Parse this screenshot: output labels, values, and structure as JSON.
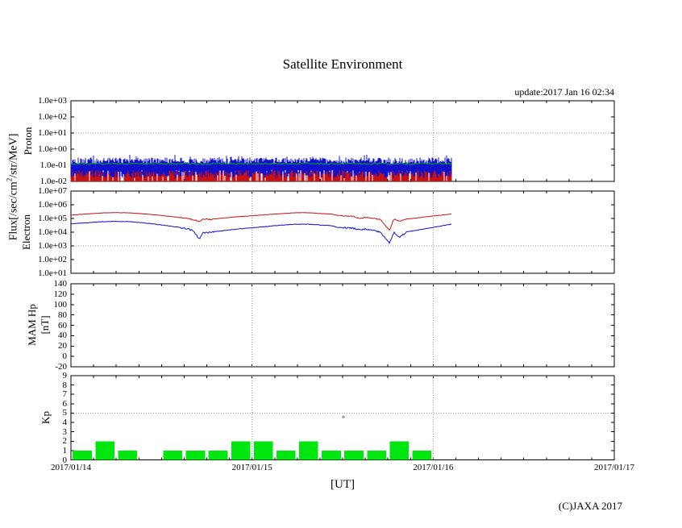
{
  "page": {
    "title": "Satellite Environment",
    "update_text": "update:2017 Jan 16 02:34",
    "xlabel": "[UT]",
    "copyright": "(C)JAXA 2017",
    "flux_label_pre": "Flux[/sec/cm",
    "flux_label_sup": "2",
    "flux_label_post": "/str/MeV]"
  },
  "axes": {
    "x": {
      "tick_labels": [
        "2017/01/14",
        "2017/01/15",
        "2017/01/16",
        "2017/01/17"
      ],
      "total_hours": 72,
      "minor_tick_hours": 3,
      "grid_hours": [
        24,
        48
      ]
    }
  },
  "chart_data": [
    {
      "type": "line",
      "panel": "proton",
      "ylabel": "Proton",
      "yscale": "log",
      "ytick_labels": [
        "1.0e+03",
        "1.0e+02",
        "1.0e+01",
        "1.0e+00",
        "1.0e-01",
        "1.0e-02"
      ],
      "ytick_logs": [
        3,
        2,
        1,
        0,
        -1,
        -2
      ],
      "grid_log": 1,
      "data_end_hours": 50.4,
      "series": [
        {
          "name": "proton-low-energy-red",
          "color": "#cc1111",
          "style": "noise-spikes",
          "spike_base_log": -2.0,
          "spike_top_log_min": -1.45,
          "spike_top_log_max": -1.0,
          "density": 0.85
        },
        {
          "name": "proton-mid-energy-blue",
          "color": "#1111cc",
          "style": "noise-band",
          "band_bottom_log_min": -1.8,
          "band_bottom_log_max": -1.3,
          "band_top_log_min": -0.9,
          "band_top_log_max": -0.52
        },
        {
          "name": "proton-high-energy-green",
          "color": "#00aa22",
          "style": "noisy-line",
          "base_log": -0.9,
          "noise_log": 0.06
        }
      ]
    },
    {
      "type": "line",
      "panel": "electron",
      "ylabel": "Electron",
      "yscale": "log",
      "ytick_labels": [
        "1.0e+07",
        "1.0e+06",
        "1.0e+05",
        "1.0e+04",
        "1.0e+03",
        "1.0e+02",
        "1.0e+01"
      ],
      "ytick_logs": [
        7,
        6,
        5,
        4,
        3,
        2,
        1
      ],
      "grid_log": 3,
      "data_end_hours": 50.4,
      "noisy_hour_ranges": [
        [
          14.5,
          19
        ],
        [
          36,
          44.8
        ]
      ],
      "series": [
        {
          "name": "electron-red",
          "color": "#cc1111",
          "hours": [
            0,
            2,
            4,
            6,
            8,
            10,
            12,
            14,
            15.5,
            16.3,
            17,
            17.5,
            18.5,
            20,
            22,
            24,
            26,
            28,
            30,
            31.5,
            33,
            34.5,
            35.3,
            36.5,
            37.5,
            38.3,
            39,
            40,
            41,
            42.2,
            42.8,
            43.5,
            44.5,
            46,
            48,
            50,
            50.4
          ],
          "log_flux": [
            5.25,
            5.32,
            5.4,
            5.43,
            5.4,
            5.32,
            5.22,
            5.1,
            5.0,
            4.88,
            4.8,
            4.95,
            4.93,
            5.02,
            5.12,
            5.2,
            5.28,
            5.36,
            5.42,
            5.42,
            5.36,
            5.32,
            5.22,
            5.18,
            5.14,
            5.0,
            5.08,
            5.0,
            4.92,
            4.15,
            4.95,
            4.8,
            4.95,
            5.05,
            5.18,
            5.3,
            5.32
          ]
        },
        {
          "name": "electron-blue",
          "color": "#1111cc",
          "hours": [
            0,
            2,
            4,
            6,
            8,
            10,
            12,
            14,
            15.5,
            16.3,
            17,
            17.5,
            18.5,
            20,
            22,
            24,
            26,
            28,
            30,
            31.5,
            33,
            34.5,
            35.3,
            36.5,
            37.5,
            38.3,
            39,
            40,
            41,
            42.2,
            42.8,
            43.5,
            44.5,
            46,
            48,
            50,
            50.4
          ],
          "log_flux": [
            4.62,
            4.68,
            4.76,
            4.79,
            4.76,
            4.66,
            4.52,
            4.38,
            4.25,
            4.05,
            3.5,
            3.95,
            4.0,
            4.1,
            4.22,
            4.32,
            4.42,
            4.52,
            4.58,
            4.58,
            4.52,
            4.48,
            4.35,
            4.32,
            4.28,
            4.15,
            4.22,
            4.12,
            4.0,
            3.2,
            4.0,
            3.6,
            4.02,
            4.15,
            4.35,
            4.55,
            4.6
          ]
        }
      ]
    },
    {
      "type": "line",
      "panel": "mam-hp",
      "ylabel_line1": "MAM Hp",
      "ylabel_line2": "[nT]",
      "yscale": "linear",
      "ylim": [
        -20,
        140
      ],
      "ytick_labels": [
        "140",
        "120",
        "100",
        "80",
        "60",
        "40",
        "20",
        "0",
        "-20"
      ],
      "ytick_values": [
        140,
        120,
        100,
        80,
        60,
        40,
        20,
        0,
        -20
      ],
      "series": []
    },
    {
      "type": "bar",
      "panel": "kp",
      "ylabel": "Kp",
      "yscale": "linear",
      "ylim": [
        0,
        9
      ],
      "ytick_labels": [
        "9",
        "8",
        "7",
        "6",
        "5",
        "4",
        "3",
        "2",
        "1",
        "0"
      ],
      "ytick_values": [
        9,
        8,
        7,
        6,
        5,
        4,
        3,
        2,
        1,
        0
      ],
      "grid_value": 5,
      "bar_color": "#00e60e",
      "bar_interval_hours": 3,
      "values": [
        1,
        2,
        1,
        0,
        1,
        1,
        1,
        2,
        2,
        1,
        2,
        1,
        1,
        1,
        2,
        1
      ],
      "marker": {
        "shape": "plus",
        "hour": 36.1,
        "value": 4.6,
        "color": "#777777"
      }
    }
  ]
}
